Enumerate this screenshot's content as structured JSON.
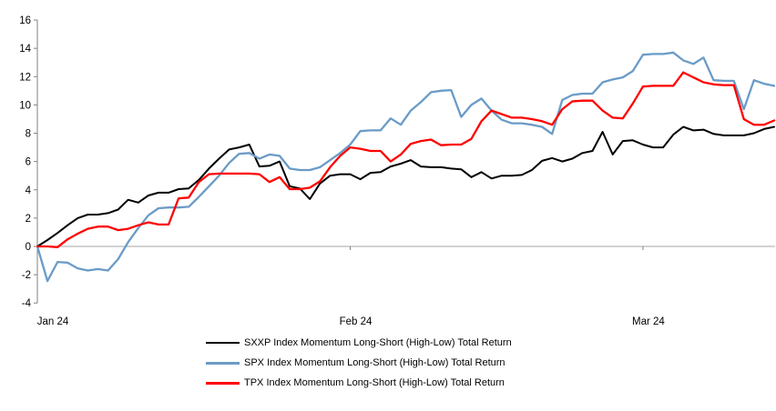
{
  "chart_data": {
    "type": "line",
    "title": "",
    "xlabel": "",
    "ylabel": "",
    "ylim": [
      -4,
      16
    ],
    "y_ticks": [
      16,
      14,
      12,
      10,
      8,
      6,
      4,
      2,
      0,
      -2,
      -4
    ],
    "x_tick_labels": [
      "Jan 24",
      "Feb 24",
      "Mar 24"
    ],
    "x_tick_days": [
      0,
      31,
      60
    ],
    "x_domain_days": [
      0,
      73
    ],
    "grid": "zero-line-only",
    "legend_position": "bottom-center",
    "axis_color": "#808080",
    "zero_line_color": "#a6a6a6",
    "tick_label_color": "#000000",
    "series": [
      {
        "name": "SXXP Index Momentum Long-Short (High-Low) Total Return",
        "color": "#000000",
        "stroke_width": 2,
        "values": [
          0,
          0.45,
          0.95,
          1.5,
          2.0,
          2.25,
          2.25,
          2.35,
          2.6,
          3.3,
          3.1,
          3.6,
          3.8,
          3.8,
          4.05,
          4.1,
          4.7,
          5.5,
          6.2,
          6.85,
          7.0,
          7.2,
          5.65,
          5.7,
          6.0,
          4.25,
          4.1,
          3.35,
          4.45,
          5.0,
          5.1,
          5.1,
          4.75,
          5.2,
          5.25,
          5.65,
          5.85,
          6.1,
          5.65,
          5.6,
          5.6,
          5.5,
          5.45,
          4.9,
          5.25,
          4.8,
          5.0,
          5.0,
          5.05,
          5.4,
          6.05,
          6.25,
          6.0,
          6.2,
          6.6,
          6.75,
          8.1,
          6.5,
          7.45,
          7.5,
          7.2,
          7.0,
          7.0,
          7.9,
          8.45,
          8.2,
          8.25,
          7.95,
          7.85,
          7.85,
          7.85,
          8.0,
          8.3,
          8.45
        ]
      },
      {
        "name": "SPX Index Momentum Long-Short (High-Low) Total Return",
        "color": "#6a9bc7",
        "stroke_width": 2.3,
        "values": [
          0,
          -2.45,
          -1.1,
          -1.15,
          -1.55,
          -1.7,
          -1.6,
          -1.7,
          -0.9,
          0.3,
          1.3,
          2.2,
          2.7,
          2.75,
          2.75,
          2.8,
          3.5,
          4.25,
          5.0,
          5.9,
          6.55,
          6.6,
          6.2,
          6.5,
          6.4,
          5.5,
          5.4,
          5.4,
          5.6,
          6.1,
          6.6,
          7.2,
          8.15,
          8.2,
          8.2,
          9.05,
          8.6,
          9.6,
          10.2,
          10.9,
          11.0,
          11.05,
          9.15,
          10.0,
          10.45,
          9.6,
          8.95,
          8.7,
          8.7,
          8.6,
          8.45,
          7.95,
          10.35,
          10.7,
          10.8,
          10.8,
          11.6,
          11.8,
          11.95,
          12.4,
          13.55,
          13.6,
          13.6,
          13.7,
          13.15,
          12.9,
          13.35,
          11.75,
          11.7,
          11.7,
          9.7,
          11.75,
          11.5,
          11.35
        ]
      },
      {
        "name": "TPX Index Momentum Long-Short (High-Low) Total Return",
        "color": "#ff0000",
        "stroke_width": 2.3,
        "values": [
          0,
          0,
          -0.05,
          0.5,
          0.9,
          1.25,
          1.4,
          1.4,
          1.15,
          1.25,
          1.5,
          1.7,
          1.55,
          1.55,
          3.4,
          3.45,
          4.55,
          5.1,
          5.15,
          5.15,
          5.15,
          5.15,
          5.1,
          4.55,
          4.9,
          4.05,
          4.05,
          4.15,
          4.6,
          5.6,
          6.4,
          7.0,
          6.9,
          6.75,
          6.75,
          6.0,
          6.5,
          7.25,
          7.45,
          7.55,
          7.15,
          7.2,
          7.2,
          7.6,
          8.85,
          9.6,
          9.35,
          9.1,
          9.1,
          9.0,
          8.85,
          8.6,
          9.7,
          10.25,
          10.3,
          10.3,
          9.6,
          9.1,
          9.05,
          10.1,
          11.3,
          11.35,
          11.35,
          11.35,
          12.3,
          11.95,
          11.6,
          11.45,
          11.4,
          11.4,
          9.0,
          8.6,
          8.6,
          8.9
        ]
      }
    ]
  }
}
